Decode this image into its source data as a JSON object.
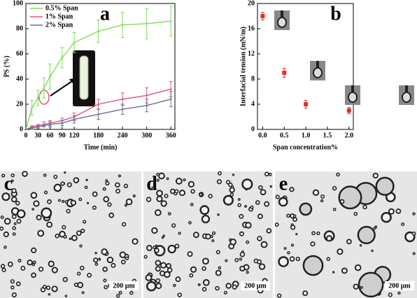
{
  "chart_data": [
    {
      "type": "line",
      "panel_label": "a",
      "x_label": "Time (min)",
      "y_label": "PS (%)",
      "x": [
        0,
        15,
        30,
        45,
        60,
        90,
        120,
        180,
        240,
        300,
        360
      ],
      "series": [
        {
          "name": "0.5% Span",
          "color": "#7fdc5a",
          "values": [
            0,
            17,
            25,
            33,
            42,
            57,
            69,
            78,
            83,
            84,
            86
          ],
          "errors": [
            0,
            6,
            6,
            8,
            10,
            8,
            8,
            9,
            10,
            12,
            12
          ]
        },
        {
          "name": "1% Span",
          "color": "#e0507a",
          "values": [
            0,
            2,
            3,
            4,
            5,
            7,
            10,
            20,
            24,
            27,
            32
          ],
          "errors": [
            0,
            1,
            1,
            2,
            2,
            2,
            3,
            4,
            5,
            6,
            6
          ]
        },
        {
          "name": "2% Span",
          "color": "#6a6f9a",
          "values": [
            0,
            1,
            2,
            3,
            4,
            5,
            8,
            12,
            16,
            19,
            24
          ],
          "errors": [
            0,
            1,
            1,
            1,
            2,
            2,
            3,
            4,
            4,
            5,
            6
          ]
        }
      ],
      "xlim": [
        0,
        370
      ],
      "xticks": [
        0,
        30,
        60,
        90,
        120,
        180,
        240,
        300,
        360
      ],
      "ylim": [
        0,
        100
      ],
      "yticks": [
        0,
        20,
        40,
        60,
        80,
        100
      ],
      "legend": "upper left"
    },
    {
      "type": "scatter",
      "panel_label": "b",
      "x_label": "Span concentration%",
      "y_label": "Interfacial tension (mN/m)",
      "x": [
        0,
        0.5,
        1,
        2
      ],
      "series": [
        {
          "color": "#e03030",
          "values": [
            18,
            9,
            4,
            3
          ],
          "errors": [
            0.6,
            0.7,
            0.6,
            0.5
          ]
        }
      ],
      "xlim": [
        -0.12,
        2.1
      ],
      "xticks": [
        {
          "value": 0,
          "label": "0.0"
        },
        0.5,
        {
          "value": 1,
          "label": "1.0"
        },
        1.5,
        {
          "value": 2,
          "label": "2.0"
        }
      ],
      "ylim": [
        0,
        20
      ],
      "yticks": [
        0,
        4,
        8,
        12,
        16,
        20
      ]
    }
  ],
  "panels": [
    {
      "label": "c",
      "scale_bar": "200 μm"
    },
    {
      "label": "d",
      "scale_bar": "200 μm"
    },
    {
      "label": "e",
      "scale_bar": "200 μm"
    }
  ]
}
